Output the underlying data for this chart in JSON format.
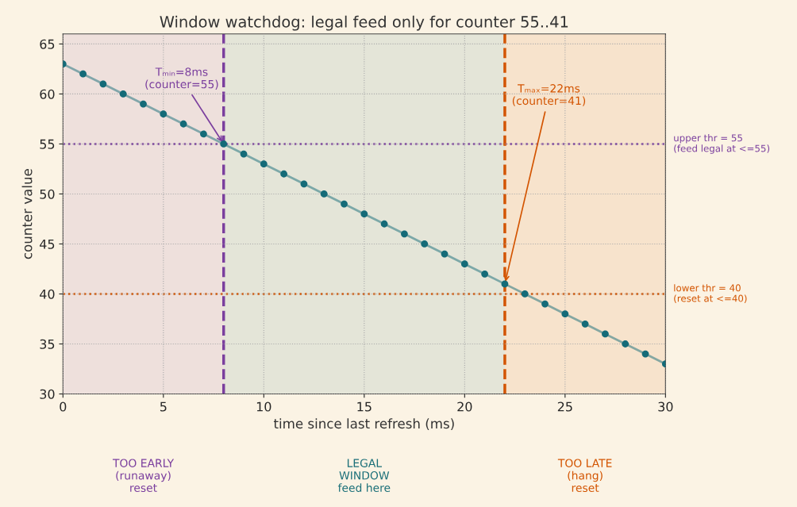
{
  "chart_data": {
    "type": "line",
    "title": "Window watchdog: legal feed only for counter 55..41",
    "xlabel": "time since last refresh (ms)",
    "ylabel": "counter value",
    "x": [
      0,
      1,
      2,
      3,
      4,
      5,
      6,
      7,
      8,
      9,
      10,
      11,
      12,
      13,
      14,
      15,
      16,
      17,
      18,
      19,
      20,
      21,
      22,
      23,
      24,
      25,
      26,
      27,
      28,
      29,
      30
    ],
    "series": [
      {
        "color": "#146b78",
        "values": [
          63,
          62,
          61,
          60,
          59,
          58,
          57,
          56,
          55,
          54,
          53,
          52,
          51,
          50,
          49,
          48,
          47,
          46,
          45,
          44,
          43,
          42,
          41,
          40,
          39,
          38,
          37,
          36,
          35,
          34,
          33
        ]
      }
    ],
    "marker": "circle",
    "line_style": "solid",
    "xlim": [
      0,
      30
    ],
    "ylim": [
      30,
      66
    ],
    "xticks": [
      0,
      5,
      10,
      15,
      20,
      25,
      30
    ],
    "yticks": [
      30,
      35,
      40,
      45,
      50,
      55,
      60,
      65
    ],
    "grid": true,
    "bands": [
      {
        "axis": "x",
        "from": 0,
        "to": 8,
        "label": "TOO EARLY\n(runaway)\nreset",
        "color": "#7b3f9e"
      },
      {
        "axis": "x",
        "from": 8,
        "to": 22,
        "label": "LEGAL\nWINDOW\nfeed here",
        "color": "#1a6f78"
      },
      {
        "axis": "x",
        "from": 22,
        "to": 30,
        "label": "TOO LATE\n(hang)\nreset",
        "color": "#d35400"
      }
    ],
    "ref_lines": [
      {
        "axis": "y",
        "value": 55,
        "label": "upper thr = 55\n(feed legal at <=55)",
        "color": "#7b3f9e",
        "line_style": "dotted"
      },
      {
        "axis": "y",
        "value": 40,
        "label": "lower thr = 40\n(reset at <=40)",
        "color": "#d35400",
        "line_style": "dotted"
      },
      {
        "axis": "x",
        "value": 8,
        "color": "#7b3f9e",
        "line_style": "dashed"
      },
      {
        "axis": "x",
        "value": 22,
        "color": "#d35400",
        "line_style": "dashed"
      }
    ],
    "annotations": [
      {
        "text": "Tₘᵢₙ=8ms\n(counter=55)",
        "x": 8,
        "y": 55
      },
      {
        "text": "Tₘₐₓ=22ms\n(counter=41)",
        "x": 22,
        "y": 41
      }
    ]
  }
}
